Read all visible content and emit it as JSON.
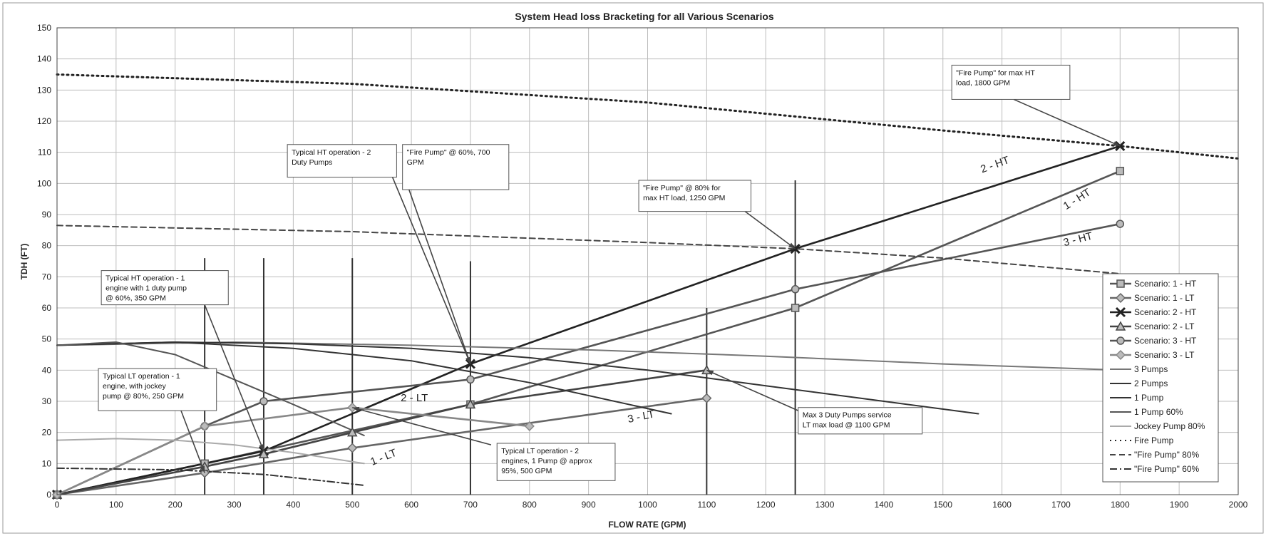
{
  "chart_data": {
    "type": "line",
    "title": "System  Head loss Bracketing for all Various Scenarios",
    "xlabel": "FLOW RATE (GPM)",
    "ylabel": "TDH (FT)",
    "xlim": [
      0,
      2000
    ],
    "ylim": [
      0,
      150
    ],
    "x_ticks": [
      "0",
      "100",
      "200",
      "300",
      "400",
      "500",
      "600",
      "700",
      "800",
      "900",
      "1000",
      "1100",
      "1200",
      "1300",
      "1400",
      "1500",
      "1600",
      "1700",
      "1800",
      "1900",
      "2000"
    ],
    "y_ticks": [
      "0",
      "10",
      "20",
      "30",
      "40",
      "50",
      "60",
      "70",
      "80",
      "90",
      "100",
      "110",
      "120",
      "130",
      "140",
      "150"
    ],
    "grid": true,
    "legend_position": "right",
    "series": [
      {
        "name": "Scenario: 1 - HT",
        "kind": "scenario",
        "marker": "square",
        "color": "#555555",
        "x": [
          0,
          250,
          700,
          1250,
          1800
        ],
        "y": [
          0,
          10,
          29,
          60,
          104
        ]
      },
      {
        "name": "Scenario: 1 - LT",
        "kind": "scenario",
        "marker": "diamond",
        "color": "#666666",
        "x": [
          0,
          250,
          500,
          1100
        ],
        "y": [
          0,
          7,
          15,
          31
        ]
      },
      {
        "name": "Scenario: 2 - HT",
        "kind": "scenario",
        "marker": "x",
        "color": "#222222",
        "x": [
          0,
          350,
          700,
          1250,
          1800
        ],
        "y": [
          0,
          14,
          42,
          79,
          112
        ]
      },
      {
        "name": "Scenario: 2 - LT",
        "kind": "scenario",
        "marker": "triangle",
        "color": "#444444",
        "x": [
          0,
          250,
          350,
          500,
          700,
          1100
        ],
        "y": [
          0,
          9,
          13,
          20,
          29,
          40
        ]
      },
      {
        "name": "Scenario: 3 - HT",
        "kind": "scenario",
        "marker": "circle",
        "color": "#555555",
        "x": [
          0,
          250,
          350,
          700,
          1250,
          1800
        ],
        "y": [
          0,
          22,
          30,
          37,
          66,
          87
        ]
      },
      {
        "name": "Scenario: 3 - LT",
        "kind": "scenario",
        "marker": "diamond",
        "color": "#888888",
        "x": [
          0,
          250,
          500,
          800
        ],
        "y": [
          0,
          22,
          28,
          22
        ]
      },
      {
        "name": "3 Pumps",
        "kind": "curve",
        "dash": "solid",
        "color": "#777777",
        "x": [
          0,
          300,
          600,
          900,
          1200,
          1500,
          1800
        ],
        "y": [
          48,
          49,
          48,
          46.5,
          44.5,
          42,
          40
        ]
      },
      {
        "name": "2 Pumps",
        "kind": "curve",
        "dash": "solid",
        "color": "#333333",
        "x": [
          0,
          200,
          400,
          600,
          800,
          1000,
          1200,
          1400,
          1560
        ],
        "y": [
          48,
          49,
          48.5,
          47,
          44,
          40,
          35,
          30,
          26
        ]
      },
      {
        "name": "1 Pump",
        "kind": "curve",
        "dash": "solid",
        "color": "#333333",
        "x": [
          0,
          200,
          400,
          600,
          800,
          1040
        ],
        "y": [
          48,
          49,
          47,
          43,
          36,
          26
        ]
      },
      {
        "name": "1 Pump 60%",
        "kind": "curve",
        "dash": "solid",
        "color": "#555555",
        "x": [
          0,
          100,
          200,
          300,
          400,
          520
        ],
        "y": [
          48,
          49,
          45,
          37,
          29,
          19
        ]
      },
      {
        "name": "Jockey Pump 80%",
        "kind": "curve",
        "dash": "solid",
        "color": "#aaaaaa",
        "x": [
          0,
          100,
          200,
          300,
          400,
          520
        ],
        "y": [
          17.5,
          18,
          17.5,
          16,
          13.5,
          10
        ]
      },
      {
        "name": "Fire Pump",
        "kind": "curve",
        "dash": "dotted",
        "color": "#222222",
        "x": [
          0,
          500,
          1000,
          1500,
          1800,
          2000
        ],
        "y": [
          135,
          132,
          126,
          117,
          112,
          108
        ]
      },
      {
        "name": "\"Fire Pump\" 80%",
        "kind": "curve",
        "dash": "dashed",
        "color": "#444444",
        "x": [
          0,
          500,
          1000,
          1250,
          1500,
          1800
        ],
        "y": [
          86.5,
          84.5,
          81,
          79,
          76,
          71
        ]
      },
      {
        "name": "\"Fire Pump\" 60%",
        "kind": "curve",
        "dash": "dashdot",
        "color": "#333333",
        "x": [
          0,
          200,
          350,
          520
        ],
        "y": [
          8.5,
          8,
          6.5,
          3
        ]
      }
    ],
    "vertical_lines": [
      {
        "x": 250,
        "y_top": 76
      },
      {
        "x": 350,
        "y_top": 76
      },
      {
        "x": 500,
        "y_top": 76
      },
      {
        "x": 700,
        "y_top": 75
      },
      {
        "x": 1100,
        "y_top": 60
      },
      {
        "x": 1250,
        "y_top": 101
      }
    ],
    "inline_labels": [
      {
        "text": "2 - HT",
        "x": 1590,
        "y": 105,
        "rotate": -20
      },
      {
        "text": "1 - HT",
        "x": 1730,
        "y": 94,
        "rotate": -32
      },
      {
        "text": "3 - HT",
        "x": 1730,
        "y": 81,
        "rotate": -14
      },
      {
        "text": "2 - LT",
        "x": 605,
        "y": 30,
        "rotate": 0
      },
      {
        "text": "3 - LT",
        "x": 990,
        "y": 24,
        "rotate": -12
      },
      {
        "text": "1 - LT",
        "x": 555,
        "y": 11,
        "rotate": -22
      }
    ],
    "annotations": [
      {
        "lines": [
          "\"Fire Pump\" for max HT",
          "load, 1800 GPM"
        ],
        "box_x": 1515,
        "box_y": 138,
        "box_x2": 1715,
        "box_y2": 127,
        "target_x": 1800,
        "target_y": 112,
        "from_x": 1620,
        "from_y": 127
      },
      {
        "lines": [
          "Typical HT operation - 2",
          "Duty Pumps"
        ],
        "box_x": 390,
        "box_y": 112.5,
        "box_x2": 575,
        "box_y2": 102,
        "target_x": 700,
        "target_y": 42,
        "from_x": 568,
        "from_y": 102
      },
      {
        "lines": [
          "\"Fire Pump\" @ 60%, 700",
          "GPM"
        ],
        "box_x": 585,
        "box_y": 112.5,
        "box_x2": 765,
        "box_y2": 98,
        "target_x": 700,
        "target_y": 42,
        "from_x": 596,
        "from_y": 98
      },
      {
        "lines": [
          "\"Fire Pump\" @ 80% for",
          "max HT load, 1250 GPM"
        ],
        "box_x": 985,
        "box_y": 101,
        "box_x2": 1175,
        "box_y2": 91,
        "target_x": 1250,
        "target_y": 79,
        "from_x": 1165,
        "from_y": 91
      },
      {
        "lines": [
          "Typical HT operation - 1",
          "engine with 1 duty pump",
          "@ 60%, 350 GPM"
        ],
        "box_x": 75,
        "box_y": 72,
        "box_x2": 290,
        "box_y2": 61,
        "target_x": 350,
        "target_y": 14,
        "from_x": 250,
        "from_y": 61
      },
      {
        "lines": [
          "Typical LT operation - 1",
          "engine, with jockey",
          "pump @ 80%, 250 GPM"
        ],
        "box_x": 70,
        "box_y": 40.5,
        "box_x2": 270,
        "box_y2": 27,
        "target_x": 250,
        "target_y": 7,
        "from_x": 210,
        "from_y": 27
      },
      {
        "lines": [
          "Typical LT operation - 2",
          "engines, 1 Pump @ approx",
          "95%, 500 GPM"
        ],
        "box_x": 745,
        "box_y": 16.5,
        "box_x2": 945,
        "box_y2": 4.5,
        "target_x": 500,
        "target_y": 28,
        "from_x": 735,
        "from_y": 16
      },
      {
        "lines": [
          "Max 3 Duty Pumps service",
          "LT max load @ 1100 GPM"
        ],
        "box_x": 1255,
        "box_y": 28,
        "box_x2": 1465,
        "box_y2": 19.5,
        "target_x": 1100,
        "target_y": 40,
        "from_x": 1255,
        "from_y": 27
      }
    ]
  }
}
